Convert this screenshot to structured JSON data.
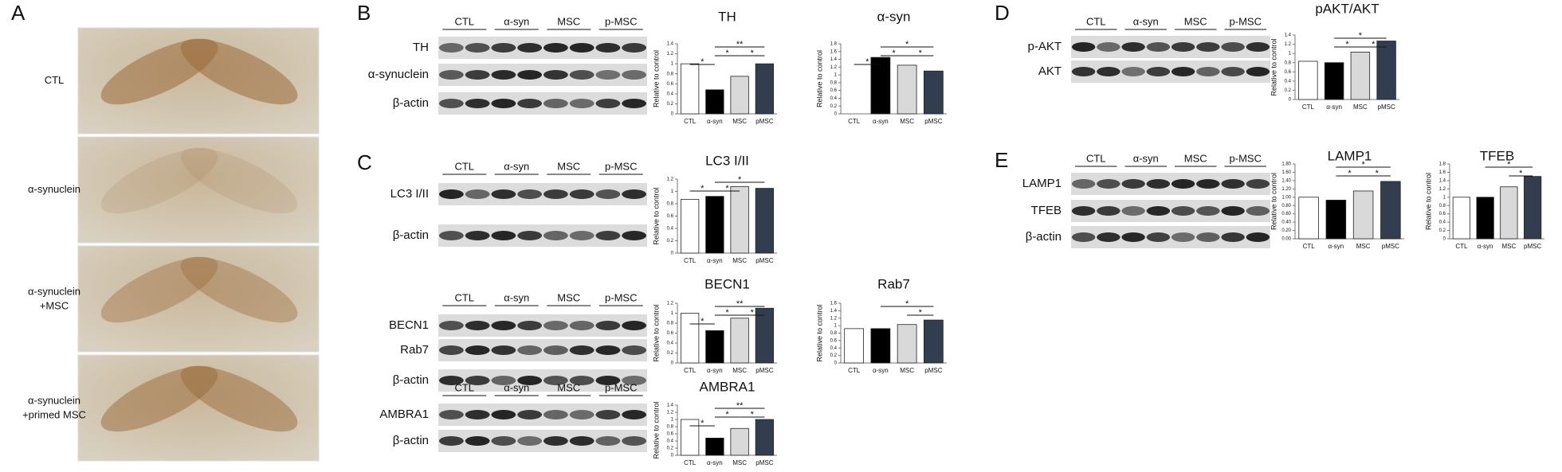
{
  "panels": {
    "letters": [
      "A",
      "B",
      "C",
      "D",
      "E"
    ],
    "images": [
      "CTL",
      "α-synuclein",
      "α-synuclein +MSC",
      "α-synuclein +primed MSC"
    ]
  },
  "blots": [
    {
      "groups": [
        "CTL",
        "α-syn",
        "MSC",
        "p-MSC"
      ],
      "rows": [
        "TH",
        "α-synuclein",
        "β-actin"
      ]
    },
    {
      "groups": [
        "CTL",
        "α-syn",
        "MSC",
        "p-MSC"
      ],
      "rows": [
        "LC3 I/II",
        "β-actin"
      ]
    },
    {
      "groups": [
        "CTL",
        "α-syn",
        "MSC",
        "p-MSC"
      ],
      "rows": [
        "BECN1",
        "Rab7",
        "β-actin"
      ]
    },
    {
      "groups": [
        "CTL",
        "α-syn",
        "MSC",
        "p-MSC"
      ],
      "rows": [
        "AMBRA1",
        "β-actin"
      ]
    },
    {
      "groups": [
        "CTL",
        "α-syn",
        "MSC",
        "p-MSC"
      ],
      "rows": [
        "p-AKT",
        "AKT"
      ]
    },
    {
      "groups": [
        "CTL",
        "α-syn",
        "MSC",
        "p-MSC"
      ],
      "rows": [
        "LAMP1",
        "TFEB",
        "β-actin"
      ]
    }
  ],
  "chart_data": [
    {
      "type": "bar",
      "title": "TH",
      "ylabel": "Relative to control",
      "categories": [
        "CTL",
        "α-syn",
        "MSC",
        "pMSC"
      ],
      "values": [
        1.0,
        0.48,
        0.75,
        1.0
      ],
      "colors": [
        "#ffffff",
        "#000000",
        "#d9d9d9",
        "#323e4f"
      ],
      "ylim": [
        0,
        1.4
      ],
      "yticks": [
        0,
        0.2,
        0.4,
        0.6,
        0.8,
        1,
        1.2,
        1.4
      ],
      "annotations": [
        "*",
        "**",
        "*",
        "*"
      ]
    },
    {
      "type": "bar",
      "title": "α-syn",
      "ylabel": "Relative to control",
      "categories": [
        "CTL",
        "α-syn",
        "MSC",
        "pMSC"
      ],
      "values": [
        0,
        1.45,
        1.25,
        1.1
      ],
      "colors": [
        "#ffffff",
        "#000000",
        "#d9d9d9",
        "#323e4f"
      ],
      "ylim": [
        0,
        1.8
      ],
      "yticks": [
        0,
        0.2,
        0.4,
        0.6,
        0.8,
        1,
        1.2,
        1.4,
        1.6,
        1.8
      ],
      "annotations": [
        "*",
        "*",
        "*",
        "*"
      ]
    },
    {
      "type": "bar",
      "title": "LC3 I/II",
      "ylabel": "Relative to control",
      "categories": [
        "CTL",
        "α-syn",
        "MSC",
        "pMSC"
      ],
      "values": [
        0.87,
        0.92,
        1.08,
        1.05
      ],
      "colors": [
        "#ffffff",
        "#000000",
        "#d9d9d9",
        "#323e4f"
      ],
      "ylim": [
        0,
        1.2
      ],
      "yticks": [
        0,
        0.2,
        0.4,
        0.6,
        0.8,
        1,
        1.2
      ],
      "annotations": [
        "*",
        "*",
        "*"
      ]
    },
    {
      "type": "bar",
      "title": "BECN1",
      "ylabel": "Relative to control",
      "categories": [
        "CTL",
        "α-syn",
        "MSC",
        "pMSC"
      ],
      "values": [
        1.0,
        0.65,
        0.9,
        1.1
      ],
      "colors": [
        "#ffffff",
        "#000000",
        "#d9d9d9",
        "#323e4f"
      ],
      "ylim": [
        0,
        1.2
      ],
      "yticks": [
        0,
        0.2,
        0.4,
        0.6,
        0.8,
        1,
        1.2
      ],
      "annotations": [
        "*",
        "**",
        "*",
        "*"
      ]
    },
    {
      "type": "bar",
      "title": "Rab7",
      "ylabel": "Relative to control",
      "categories": [
        "CTL",
        "α-syn",
        "MSC",
        "pMSC"
      ],
      "values": [
        0.92,
        0.92,
        1.03,
        1.15
      ],
      "colors": [
        "#ffffff",
        "#000000",
        "#d9d9d9",
        "#323e4f"
      ],
      "ylim": [
        0,
        1.6
      ],
      "yticks": [
        0,
        0.2,
        0.4,
        0.6,
        0.8,
        1,
        1.2,
        1.4,
        1.6
      ],
      "annotations": [
        "*",
        "*"
      ]
    },
    {
      "type": "bar",
      "title": "AMBRA1",
      "ylabel": "Relative to control",
      "categories": [
        "CTL",
        "α-syn",
        "MSC",
        "pMSC"
      ],
      "values": [
        1.0,
        0.48,
        0.75,
        1.0
      ],
      "colors": [
        "#ffffff",
        "#000000",
        "#d9d9d9",
        "#323e4f"
      ],
      "ylim": [
        0,
        1.4
      ],
      "yticks": [
        0,
        0.2,
        0.4,
        0.6,
        0.8,
        1,
        1.2,
        1.4
      ],
      "annotations": [
        "*",
        "**",
        "*",
        "*"
      ]
    },
    {
      "type": "bar",
      "title": "pAKT/AKT",
      "ylabel": "Relative to control",
      "categories": [
        "CTL",
        "α-syn",
        "MSC",
        "pMSC"
      ],
      "values": [
        0.83,
        0.8,
        1.03,
        1.27
      ],
      "colors": [
        "#ffffff",
        "#000000",
        "#d9d9d9",
        "#323e4f"
      ],
      "ylim": [
        0,
        1.4
      ],
      "yticks": [
        0,
        0.2,
        0.4,
        0.6,
        0.8,
        1,
        1.2,
        1.4
      ],
      "annotations": [
        "*",
        "*",
        "*"
      ]
    },
    {
      "type": "bar",
      "title": "LAMP1",
      "ylabel": "Relative to control",
      "categories": [
        "CTL",
        "α-syn",
        "MSC",
        "pMSC"
      ],
      "values": [
        1.0,
        0.93,
        1.15,
        1.38
      ],
      "colors": [
        "#ffffff",
        "#000000",
        "#d9d9d9",
        "#323e4f"
      ],
      "ylim": [
        0,
        1.8
      ],
      "yticks": [
        {
          "value": 0,
          "label": "0.00"
        },
        {
          "value": 0.2,
          "label": "0.20"
        },
        {
          "value": 0.4,
          "label": "0.40"
        },
        {
          "value": 0.6,
          "label": "0.60"
        },
        {
          "value": 0.8,
          "label": "0.80"
        },
        {
          "value": 1,
          "label": "1.00"
        },
        {
          "value": 1.2,
          "label": "1.20"
        },
        {
          "value": 1.4,
          "label": "1.40"
        },
        {
          "value": 1.6,
          "label": "1.60"
        },
        {
          "value": 1.8,
          "label": "1.80"
        }
      ],
      "annotations": [
        "*",
        "*",
        "*"
      ]
    },
    {
      "type": "bar",
      "title": "TFEB",
      "ylabel": "Relative to control",
      "categories": [
        "CTL",
        "α-syn",
        "MSC",
        "pMSC"
      ],
      "values": [
        1.0,
        1.0,
        1.25,
        1.5
      ],
      "colors": [
        "#ffffff",
        "#000000",
        "#d9d9d9",
        "#323e4f"
      ],
      "ylim": [
        0,
        1.8
      ],
      "yticks": [
        0,
        0.2,
        0.4,
        0.6,
        0.8,
        1,
        1.2,
        1.4,
        1.6,
        1.8
      ],
      "annotations": [
        "*",
        "*"
      ]
    }
  ]
}
